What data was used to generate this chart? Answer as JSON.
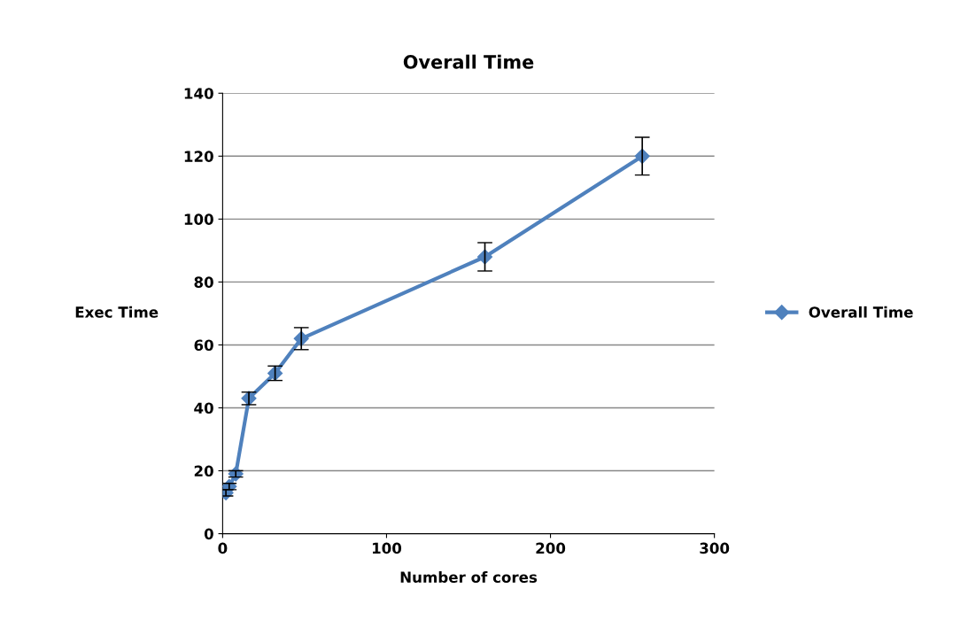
{
  "chart_data": {
    "type": "line",
    "title": "Overall Time",
    "xlabel": "Number of cores",
    "ylabel": "Exec Time",
    "x": [
      2,
      4,
      8,
      16,
      32,
      48,
      160,
      256
    ],
    "series": [
      {
        "name": "Overall Time",
        "color": "#4f81bd",
        "values": [
          13,
          15,
          19,
          43,
          51,
          62,
          88,
          120
        ],
        "errors": [
          1,
          1,
          1,
          2,
          2.3,
          3.5,
          4.5,
          6
        ]
      }
    ],
    "xlim": [
      0,
      300
    ],
    "xticks": [
      0,
      100,
      200,
      300
    ],
    "ylim": [
      0,
      140
    ],
    "yticks": [
      0,
      20,
      40,
      60,
      80,
      100,
      120,
      140
    ],
    "grid": "y",
    "legend": "right",
    "marker": "diamond",
    "line_style": "solid"
  }
}
